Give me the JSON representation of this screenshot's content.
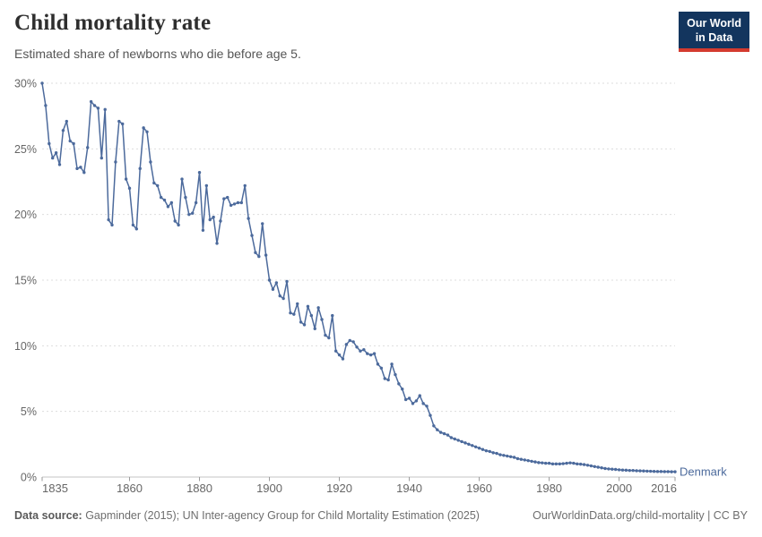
{
  "header": {
    "title": "Child mortality rate",
    "subtitle": "Estimated share of newborns who die before age 5.",
    "logo_line1": "Our World",
    "logo_line2": "in Data"
  },
  "footer": {
    "source_label": "Data source:",
    "source_text": " Gapminder (2015); UN Inter-agency Group for Child Mortality Estimation (2025)",
    "right_text": "OurWorldinData.org/child-mortality | CC BY"
  },
  "colors": {
    "line": "#4C6A9C",
    "entity_label": "#4C6A9C",
    "grid": "#dddddd",
    "axis_line": "#c4c4c4",
    "axis_tick": "#9a9a9a",
    "tick_text": "#666666",
    "logo_bg": "#13355E",
    "logo_stripe": "#D43B2F"
  },
  "chart_data": {
    "type": "line",
    "title": "Child mortality rate",
    "subtitle": "Estimated share of newborns who die before age 5.",
    "entity": "Denmark",
    "unit": "%",
    "grid": "dashed-horizontal",
    "legend_position": "end-of-line-label",
    "xlim": [
      1835,
      2016
    ],
    "ylim": [
      0,
      30
    ],
    "x_ticks": [
      1835,
      1860,
      1880,
      1900,
      1920,
      1940,
      1960,
      1980,
      2000,
      2016
    ],
    "y_ticks": [
      0,
      5,
      10,
      15,
      20,
      25,
      30
    ],
    "y_tick_suffix": "%",
    "x_start_year": 1835,
    "x_step": 1,
    "values": [
      30.0,
      28.3,
      25.4,
      24.3,
      24.7,
      23.8,
      26.4,
      27.1,
      25.6,
      25.4,
      23.5,
      23.6,
      23.2,
      25.1,
      28.6,
      28.3,
      28.1,
      24.3,
      28.0,
      19.6,
      19.2,
      24.0,
      27.1,
      26.9,
      22.7,
      22.0,
      19.2,
      18.9,
      23.5,
      26.6,
      26.3,
      24.0,
      22.4,
      22.2,
      21.3,
      21.1,
      20.6,
      20.9,
      19.5,
      19.2,
      22.7,
      21.3,
      20.0,
      20.1,
      20.9,
      23.2,
      18.8,
      22.2,
      19.6,
      19.8,
      17.8,
      19.5,
      21.2,
      21.3,
      20.7,
      20.8,
      20.9,
      20.9,
      22.2,
      19.7,
      18.4,
      17.1,
      16.8,
      19.3,
      16.9,
      15.0,
      14.3,
      14.8,
      13.8,
      13.6,
      14.9,
      12.5,
      12.4,
      13.2,
      11.8,
      11.6,
      13.0,
      12.3,
      11.3,
      12.9,
      12.0,
      10.8,
      10.6,
      12.3,
      9.6,
      9.3,
      9.0,
      10.1,
      10.4,
      10.3,
      9.9,
      9.6,
      9.7,
      9.4,
      9.3,
      9.4,
      8.6,
      8.3,
      7.5,
      7.4,
      8.6,
      7.8,
      7.1,
      6.7,
      5.9,
      6.0,
      5.6,
      5.8,
      6.2,
      5.6,
      5.4,
      4.7,
      3.9,
      3.6,
      3.4,
      3.3,
      3.2,
      3.0,
      2.9,
      2.8,
      2.7,
      2.6,
      2.5,
      2.4,
      2.3,
      2.2,
      2.1,
      2.0,
      1.95,
      1.85,
      1.8,
      1.7,
      1.65,
      1.6,
      1.55,
      1.5,
      1.4,
      1.35,
      1.3,
      1.25,
      1.2,
      1.15,
      1.1,
      1.08,
      1.05,
      1.05,
      1.0,
      1.0,
      1.0,
      1.02,
      1.05,
      1.08,
      1.05,
      1.0,
      0.98,
      0.95,
      0.9,
      0.85,
      0.8,
      0.75,
      0.7,
      0.65,
      0.62,
      0.6,
      0.58,
      0.55,
      0.53,
      0.52,
      0.5,
      0.5,
      0.48,
      0.47,
      0.46,
      0.45,
      0.44,
      0.43,
      0.42,
      0.42,
      0.41,
      0.41,
      0.4,
      0.4
    ]
  }
}
